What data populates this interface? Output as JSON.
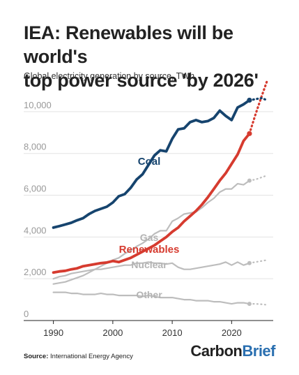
{
  "title_line1": "IEA: Renewables will be world's",
  "title_line2": "top power source 'by 2026'",
  "subtitle": "Global electricity generation by source, TWh",
  "source_label": "Source:",
  "source_text": "International Energy Agency",
  "brand_part1": "Carbon",
  "brand_part2": "Brief",
  "chart_data": {
    "type": "line",
    "title": "IEA: Renewables will be world's top power source 'by 2026'",
    "ylabel": "Global electricity generation by source, TWh",
    "xlim": [
      1985,
      2027
    ],
    "ylim": [
      0,
      11000
    ],
    "x_ticks": [
      1990,
      2000,
      2010,
      2020
    ],
    "y_ticks": [
      0,
      2000,
      4000,
      6000,
      8000,
      10000
    ],
    "y_tick_labels": [
      "0",
      "2,000",
      "4,000",
      "6,000",
      "8,000",
      "10,000"
    ],
    "grid": "horizontal",
    "series": [
      {
        "name": "Coal",
        "color": "#16446e",
        "x": [
          1990,
          1991,
          1992,
          1993,
          1994,
          1995,
          1996,
          1997,
          1998,
          1999,
          2000,
          2001,
          2002,
          2003,
          2004,
          2005,
          2006,
          2007,
          2008,
          2009,
          2010,
          2011,
          2012,
          2013,
          2014,
          2015,
          2016,
          2017,
          2018,
          2019,
          2020,
          2021,
          2022,
          2023
        ],
        "values": [
          4450,
          4520,
          4600,
          4680,
          4800,
          4900,
          5100,
          5250,
          5350,
          5450,
          5650,
          5950,
          6050,
          6350,
          6750,
          7000,
          7450,
          7900,
          8150,
          8100,
          8700,
          9150,
          9200,
          9500,
          9600,
          9500,
          9550,
          9700,
          10050,
          9800,
          9600,
          10200,
          10350,
          10550
        ],
        "projection": {
          "x": [
            2023,
            2024,
            2025,
            2026
          ],
          "values": [
            10550,
            10600,
            10650,
            10550
          ]
        }
      },
      {
        "name": "Renewables",
        "color": "#d63b2f",
        "x": [
          1990,
          1991,
          1992,
          1993,
          1994,
          1995,
          1996,
          1997,
          1998,
          1999,
          2000,
          2001,
          2002,
          2003,
          2004,
          2005,
          2006,
          2007,
          2008,
          2009,
          2010,
          2011,
          2012,
          2013,
          2014,
          2015,
          2016,
          2017,
          2018,
          2019,
          2020,
          2021,
          2022,
          2023
        ],
        "values": [
          2300,
          2350,
          2380,
          2450,
          2500,
          2600,
          2650,
          2700,
          2750,
          2780,
          2850,
          2800,
          2900,
          3000,
          3150,
          3300,
          3450,
          3600,
          3800,
          4000,
          4250,
          4450,
          4750,
          5000,
          5250,
          5550,
          5900,
          6300,
          6700,
          7050,
          7500,
          7950,
          8600,
          8950
        ],
        "projection": {
          "x": [
            2023,
            2024,
            2025,
            2026
          ],
          "values": [
            8950,
            9850,
            10700,
            11500
          ]
        }
      },
      {
        "name": "Gas",
        "color": "#bdbdbd",
        "x": [
          1990,
          1991,
          1992,
          1993,
          1994,
          1995,
          1996,
          1997,
          1998,
          1999,
          2000,
          2001,
          2002,
          2003,
          2004,
          2005,
          2006,
          2007,
          2008,
          2009,
          2010,
          2011,
          2012,
          2013,
          2014,
          2015,
          2016,
          2017,
          2018,
          2019,
          2020,
          2021,
          2022,
          2023
        ],
        "values": [
          1750,
          1800,
          1850,
          1950,
          2050,
          2150,
          2300,
          2450,
          2600,
          2750,
          2900,
          3000,
          3200,
          3350,
          3550,
          3700,
          3900,
          4150,
          4300,
          4300,
          4750,
          4900,
          5100,
          5150,
          5200,
          5400,
          5650,
          5850,
          6150,
          6300,
          6300,
          6550,
          6500,
          6700
        ],
        "projection": {
          "x": [
            2023,
            2024,
            2025,
            2026
          ],
          "values": [
            6700,
            6750,
            6850,
            6950
          ]
        }
      },
      {
        "name": "Nuclear",
        "color": "#bdbdbd",
        "x": [
          1990,
          1991,
          1992,
          1993,
          1994,
          1995,
          1996,
          1997,
          1998,
          1999,
          2000,
          2001,
          2002,
          2003,
          2004,
          2005,
          2006,
          2007,
          2008,
          2009,
          2010,
          2011,
          2012,
          2013,
          2014,
          2015,
          2016,
          2017,
          2018,
          2019,
          2020,
          2021,
          2022,
          2023
        ],
        "values": [
          2000,
          2100,
          2150,
          2250,
          2300,
          2350,
          2400,
          2450,
          2450,
          2500,
          2550,
          2600,
          2650,
          2650,
          2750,
          2750,
          2800,
          2750,
          2750,
          2700,
          2750,
          2550,
          2450,
          2450,
          2500,
          2550,
          2600,
          2650,
          2700,
          2800,
          2650,
          2800,
          2650,
          2750
        ],
        "projection": {
          "x": [
            2023,
            2024,
            2025,
            2026
          ],
          "values": [
            2750,
            2800,
            2850,
            2900
          ]
        }
      },
      {
        "name": "Other",
        "color": "#bdbdbd",
        "x": [
          1990,
          1991,
          1992,
          1993,
          1994,
          1995,
          1996,
          1997,
          1998,
          1999,
          2000,
          2001,
          2002,
          2003,
          2004,
          2005,
          2006,
          2007,
          2008,
          2009,
          2010,
          2011,
          2012,
          2013,
          2014,
          2015,
          2016,
          2017,
          2018,
          2019,
          2020,
          2021,
          2022,
          2023
        ],
        "values": [
          1350,
          1350,
          1350,
          1300,
          1300,
          1250,
          1250,
          1250,
          1300,
          1250,
          1250,
          1200,
          1200,
          1200,
          1200,
          1150,
          1200,
          1150,
          1100,
          1100,
          1100,
          1050,
          1000,
          1000,
          950,
          950,
          950,
          900,
          900,
          850,
          800,
          850,
          850,
          800
        ],
        "projection": {
          "x": [
            2023,
            2024,
            2025,
            2026
          ],
          "values": [
            800,
            800,
            780,
            750
          ]
        }
      }
    ]
  }
}
